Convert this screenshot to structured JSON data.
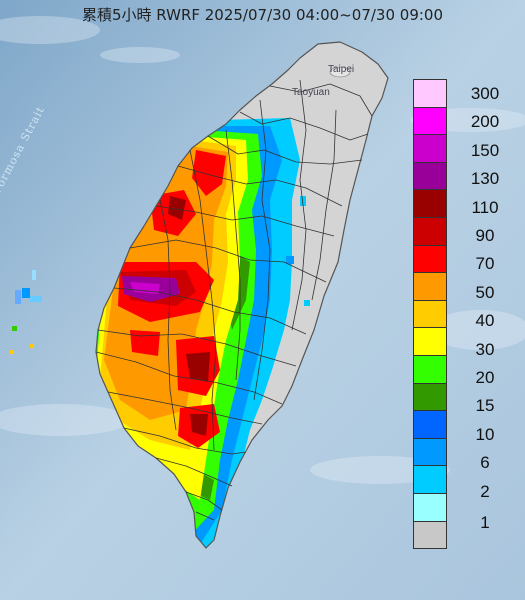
{
  "title": "累積5小時 RWRF 2025/07/30 04:00~07/30 09:00",
  "place_labels": {
    "taipei": "Taipei",
    "taoyuan": "Taoyuan",
    "strait": "Formosa Strait"
  },
  "legend": {
    "levels": [
      {
        "label": "300",
        "color": "#ffc8ff"
      },
      {
        "label": "200",
        "color": "#ff00ff"
      },
      {
        "label": "150",
        "color": "#cc00cc"
      },
      {
        "label": "130",
        "color": "#990099"
      },
      {
        "label": "110",
        "color": "#990000"
      },
      {
        "label": "90",
        "color": "#cc0000"
      },
      {
        "label": "70",
        "color": "#ff0000"
      },
      {
        "label": "50",
        "color": "#ff9900"
      },
      {
        "label": "40",
        "color": "#ffcc00"
      },
      {
        "label": "30",
        "color": "#ffff00"
      },
      {
        "label": "20",
        "color": "#33ff00"
      },
      {
        "label": "15",
        "color": "#339900"
      },
      {
        "label": "10",
        "color": "#0066ff"
      },
      {
        "label": "6",
        "color": "#0099ff"
      },
      {
        "label": "2",
        "color": "#00ccff"
      },
      {
        "label": "1",
        "color": "#99ffff"
      },
      {
        "label": "",
        "color": "#c8c8c8"
      }
    ]
  },
  "colors": {
    "sea": "#b7cfe3",
    "land": "#d8d8d8",
    "border": "#333333"
  }
}
